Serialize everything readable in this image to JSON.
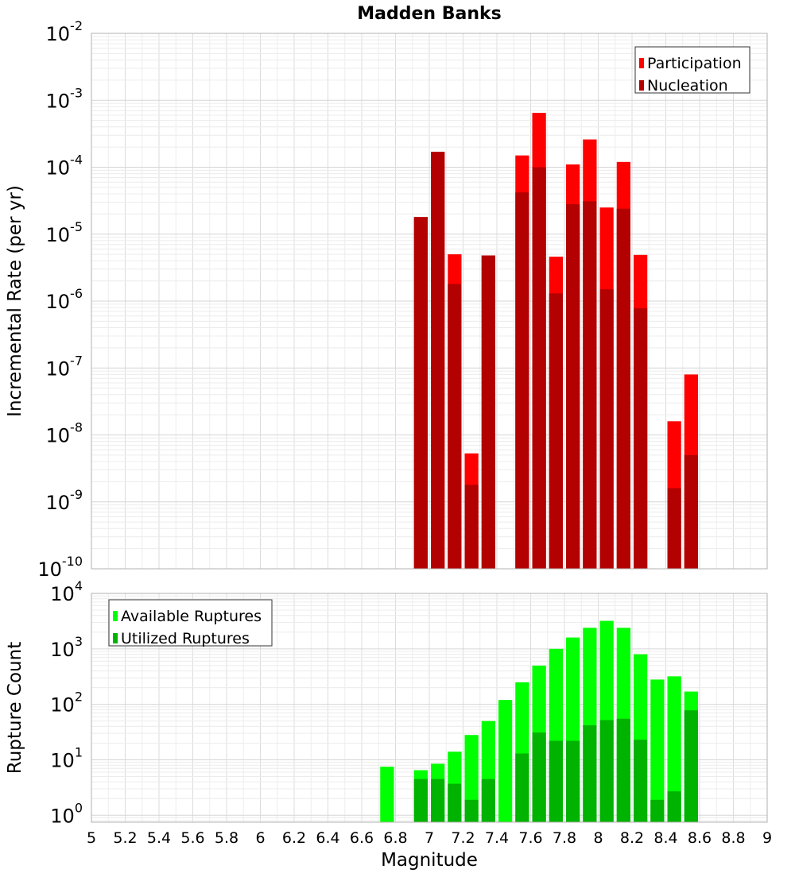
{
  "chart_data": [
    {
      "type": "bar",
      "title": "Madden Banks",
      "ylabel": "Incremental Rate (per yr)",
      "xlabel": "",
      "yscale": "log",
      "ylim": [
        1e-10,
        0.01
      ],
      "xlim": [
        5,
        9
      ],
      "ytick_exponents": [
        "-10",
        "-9",
        "-8",
        "-7",
        "-6",
        "-5",
        "-4",
        "-3",
        "-2"
      ],
      "grid": true,
      "legend_position": "top-right",
      "x": [
        6.95,
        7.05,
        7.15,
        7.25,
        7.35,
        7.55,
        7.65,
        7.75,
        7.85,
        7.95,
        8.05,
        8.15,
        8.25,
        8.45,
        8.55
      ],
      "series": [
        {
          "name": "Participation",
          "color": "#ff0000",
          "values": [
            1.8e-05,
            0.00017,
            5e-06,
            5.3e-09,
            4.8e-06,
            0.00015,
            0.00065,
            4.6e-06,
            0.00011,
            0.00026,
            2.5e-05,
            0.00012,
            4.9e-06,
            1.6e-08,
            8e-08
          ]
        },
        {
          "name": "Nucleation",
          "color": "#b30000",
          "values": [
            1.8e-05,
            0.00017,
            1.8e-06,
            1.8e-09,
            4.8e-06,
            4.2e-05,
            0.0001,
            1.3e-06,
            2.8e-05,
            3.1e-05,
            1.5e-06,
            2.4e-05,
            7.8e-07,
            1.6e-09,
            5e-09
          ]
        }
      ]
    },
    {
      "type": "bar",
      "title": "",
      "ylabel": "Rupture Count",
      "xlabel": "Magnitude",
      "yscale": "log",
      "ylim": [
        0.75,
        10000
      ],
      "xlim": [
        5,
        9
      ],
      "ytick_exponents": [
        "0",
        "1",
        "2",
        "3",
        "4"
      ],
      "xticks": [
        "5",
        "5.2",
        "5.4",
        "5.6",
        "5.8",
        "6",
        "6.2",
        "6.4",
        "6.6",
        "6.8",
        "7",
        "7.2",
        "7.4",
        "7.6",
        "7.8",
        "8",
        "8.2",
        "8.4",
        "8.6",
        "8.8",
        "9"
      ],
      "grid": true,
      "legend_position": "top-left",
      "x": [
        6.75,
        6.95,
        7.05,
        7.15,
        7.25,
        7.35,
        7.45,
        7.55,
        7.65,
        7.75,
        7.85,
        7.95,
        8.05,
        8.15,
        8.25,
        8.35,
        8.45,
        8.55
      ],
      "series": [
        {
          "name": "Available Ruptures",
          "color": "#00ff00",
          "values": [
            7.5,
            6.5,
            8.5,
            14,
            28,
            50,
            120,
            250,
            500,
            1000,
            1600,
            2400,
            3200,
            2400,
            800,
            280,
            320,
            170
          ]
        },
        {
          "name": "Utilized Ruptures",
          "color": "#00b300",
          "values": [
            null,
            4.5,
            4.5,
            3.7,
            1.9,
            4.5,
            null,
            13,
            31,
            22,
            22,
            42,
            52,
            55,
            23,
            1.9,
            2.7,
            78
          ]
        }
      ]
    }
  ]
}
